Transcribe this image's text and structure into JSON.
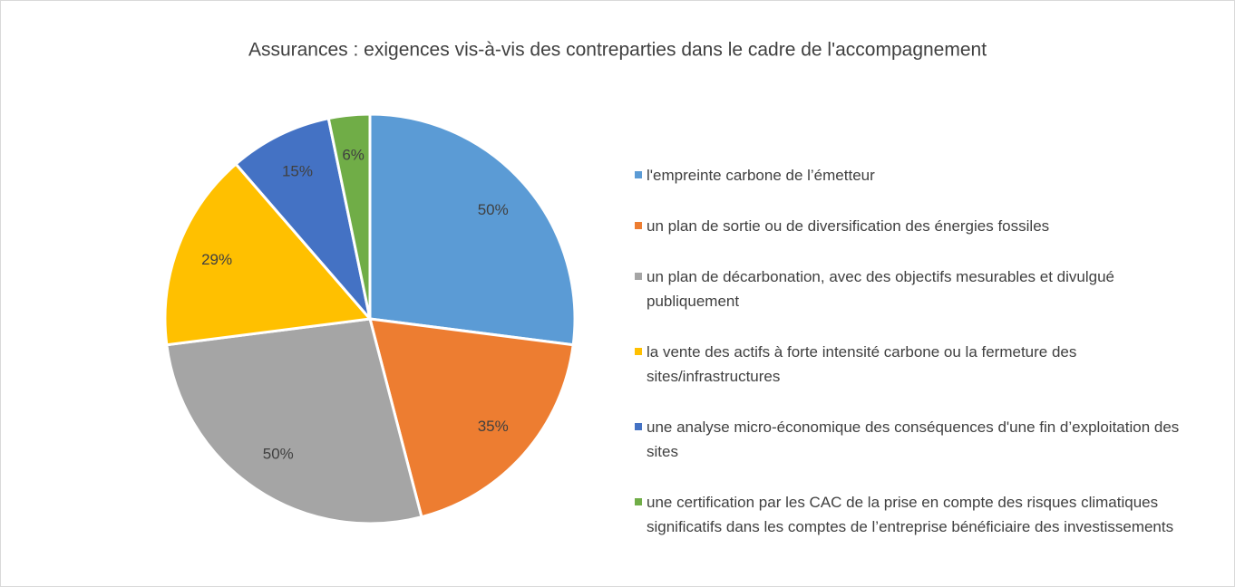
{
  "chart_data": {
    "type": "pie",
    "title": "Assurances : exigences vis-à-vis des contreparties dans le cadre de l'accompagnement",
    "categories": [
      "l'empreinte carbone de l’émetteur",
      "un plan de sortie ou de diversification des énergies fossiles",
      "un plan de décarbonation, avec des objectifs mesurables et divulgué publiquement",
      "la vente des actifs à forte intensité carbone ou la fermeture des sites/infrastructures",
      "une analyse micro-économique des conséquences d'une fin d’exploitation des sites",
      "une certification par les CAC de la prise en compte des risques climatiques significatifs dans les comptes de l’entreprise bénéficiaire des investissements"
    ],
    "values": [
      50,
      35,
      50,
      29,
      15,
      6
    ],
    "value_labels": [
      "50%",
      "35%",
      "50%",
      "29%",
      "15%",
      "6%"
    ],
    "colors": [
      "#5b9bd5",
      "#ed7d31",
      "#a5a5a5",
      "#ffc000",
      "#4472c4",
      "#70ad47"
    ],
    "legend": "right"
  }
}
